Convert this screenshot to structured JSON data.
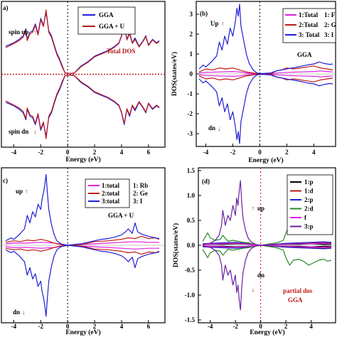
{
  "chart_data": [
    {
      "type": "line",
      "panel_label": "a)",
      "xlabel": "Energy (eV)",
      "ylabel": "",
      "xlim": [
        -4.6,
        6.8
      ],
      "ylim": [
        -1.0,
        1.0
      ],
      "xticks": [
        -4,
        -2,
        0,
        2,
        4,
        6
      ],
      "yticks": [],
      "zero_line": "dotted-red-horizontal",
      "fermi_line": "dotted-black-vertical",
      "legend": "top-center",
      "annotations": [
        {
          "text": "spin up",
          "color": "#000000"
        },
        {
          "text": "spin dn",
          "color": "#000000"
        },
        {
          "text": "Total DOS",
          "color": "#b01717"
        }
      ],
      "series": [
        {
          "name": "GGA",
          "color": "#1f1fd6",
          "x": [
            -4.6,
            -4,
            -3.6,
            -3.3,
            -3.1,
            -3.0,
            -2.8,
            -2.6,
            -2.4,
            -2.2,
            -2.0,
            -1.8,
            -1.6,
            -1.4,
            -1.2,
            -1.0,
            -0.8,
            -0.6,
            -0.4,
            -0.2,
            0.2,
            0.5,
            0.8,
            1.0,
            1.5,
            2.0,
            2.5,
            3.0,
            3.5,
            3.8,
            4.0,
            4.2,
            4.4,
            4.6,
            4.8,
            5.0,
            5.3,
            5.6,
            5.8,
            6.0,
            6.3,
            6.6,
            6.8
          ],
          "y": [
            0.4,
            0.45,
            0.5,
            0.55,
            0.65,
            0.5,
            0.6,
            0.62,
            0.72,
            0.58,
            0.8,
            0.7,
            0.88,
            0.62,
            0.55,
            0.42,
            0.3,
            0.22,
            0.12,
            0.02,
            0.01,
            0.02,
            0.08,
            0.12,
            0.18,
            0.26,
            0.3,
            0.34,
            0.4,
            0.45,
            0.55,
            0.72,
            0.5,
            0.6,
            0.45,
            0.52,
            0.4,
            0.48,
            0.55,
            0.42,
            0.5,
            0.45,
            0.48
          ]
        },
        {
          "name": "GGA + U",
          "color": "#c01818",
          "x": [
            -4.6,
            -4,
            -3.6,
            -3.3,
            -3.1,
            -3.0,
            -2.8,
            -2.6,
            -2.4,
            -2.2,
            -2.0,
            -1.8,
            -1.6,
            -1.4,
            -1.2,
            -1.0,
            -0.8,
            -0.6,
            -0.4,
            -0.2,
            0.2,
            0.5,
            0.8,
            1.0,
            1.5,
            2.0,
            2.5,
            3.0,
            3.5,
            3.8,
            4.0,
            4.2,
            4.4,
            4.6,
            4.8,
            5.0,
            5.3,
            5.6,
            5.8,
            6.0,
            6.3,
            6.6,
            6.8
          ],
          "y": [
            0.38,
            0.44,
            0.48,
            0.53,
            0.63,
            0.48,
            0.58,
            0.6,
            0.7,
            0.56,
            0.78,
            0.68,
            0.92,
            0.6,
            0.53,
            0.4,
            0.28,
            0.2,
            0.1,
            0.02,
            0.01,
            0.02,
            0.07,
            0.11,
            0.17,
            0.25,
            0.29,
            0.33,
            0.39,
            0.44,
            0.54,
            0.7,
            0.49,
            0.58,
            0.44,
            0.5,
            0.39,
            0.47,
            0.54,
            0.41,
            0.49,
            0.44,
            0.47
          ]
        }
      ]
    },
    {
      "type": "line",
      "panel_label": "(b)",
      "xlabel": "Energy (eV)",
      "ylabel": "DOS(states/eV)",
      "xlim": [
        -4.5,
        5.4
      ],
      "ylim": [
        -3.5,
        3.5
      ],
      "xticks": [
        -4,
        -2,
        0,
        2,
        4
      ],
      "yticks": [
        -3,
        -2,
        -1,
        0,
        1,
        2,
        3
      ],
      "legend": "top-right",
      "annotations": [
        {
          "text": "Up",
          "color": "#000000"
        },
        {
          "text": "dn",
          "color": "#000000"
        },
        {
          "text": "GGA",
          "color": "#000000"
        }
      ],
      "legend_entries": [
        "1:Total",
        "2:Total",
        "3: Total"
      ],
      "side_labels": [
        "1: F",
        "2: G",
        "3: I"
      ],
      "series": [
        {
          "name": "1:Total",
          "color": "#e020e0",
          "x": [
            -4.5,
            -4,
            -3,
            -2,
            -1.5,
            -1,
            0,
            1,
            1.5,
            2,
            3,
            4,
            4.5,
            5,
            5.4
          ],
          "y": [
            0.05,
            0.08,
            0.1,
            0.12,
            0.1,
            0.05,
            0.0,
            0.03,
            0.06,
            0.08,
            0.1,
            0.12,
            0.15,
            0.12,
            0.1
          ]
        },
        {
          "name": "2:Total",
          "color": "#c01818",
          "x": [
            -4.5,
            -4,
            -3.5,
            -3,
            -2.5,
            -2,
            -1.5,
            -1,
            -0.5,
            0,
            0.8,
            1.2,
            1.6,
            2,
            2.5,
            3,
            3.5,
            4,
            4.5,
            5,
            5.4
          ],
          "y": [
            0.1,
            0.25,
            0.2,
            0.3,
            0.25,
            0.3,
            0.2,
            0.1,
            0.05,
            0.0,
            0.0,
            0.15,
            0.2,
            0.3,
            0.25,
            0.3,
            0.35,
            0.4,
            0.3,
            0.25,
            0.2
          ]
        },
        {
          "name": "3: Total",
          "color": "#1f1fd6",
          "x": [
            -4.5,
            -4.2,
            -4.0,
            -3.6,
            -3.2,
            -3.0,
            -2.8,
            -2.6,
            -2.4,
            -2.2,
            -2.0,
            -1.8,
            -1.7,
            -1.6,
            -1.5,
            -1.4,
            -1.2,
            -1.0,
            -0.8,
            -0.5,
            -0.2,
            0.2,
            0.8,
            1.0,
            1.4,
            1.8,
            2.2,
            2.6,
            3.0,
            3.5,
            4.0,
            4.4,
            4.8,
            5.2,
            5.4
          ],
          "y": [
            0.25,
            0.45,
            0.35,
            0.6,
            0.9,
            1.6,
            1.2,
            1.9,
            1.5,
            2.3,
            1.9,
            2.7,
            3.3,
            2.9,
            3.5,
            2.4,
            1.7,
            1.0,
            0.55,
            0.2,
            0.04,
            0.02,
            0.05,
            0.1,
            0.18,
            0.22,
            0.28,
            0.32,
            0.38,
            0.45,
            0.5,
            0.6,
            0.52,
            0.48,
            0.5
          ]
        }
      ]
    },
    {
      "type": "line",
      "panel_label": "c)",
      "xlabel": "Energy (eV)",
      "ylabel": "",
      "xlim": [
        -4.6,
        6.8
      ],
      "ylim": [
        -1.0,
        1.0
      ],
      "xticks": [
        -4,
        -2,
        0,
        2,
        4,
        6
      ],
      "yticks": [],
      "legend": "top-right",
      "annotations": [
        {
          "text": "up",
          "color": "#000000"
        },
        {
          "text": "dn",
          "color": "#000000"
        },
        {
          "text": "GGA + U",
          "color": "#000000"
        }
      ],
      "legend_entries": [
        "1:total",
        "2:total",
        "3:total"
      ],
      "side_labels": [
        "1: Rb",
        "2: Ge",
        "3: I"
      ],
      "series": [
        {
          "name": "1:total",
          "color": "#e020e0",
          "x": [
            -4.6,
            -4,
            -3,
            -2,
            -1,
            0,
            1,
            2,
            3,
            4,
            5,
            6,
            6.8
          ],
          "y": [
            0.02,
            0.03,
            0.03,
            0.04,
            0.03,
            0.0,
            0.01,
            0.02,
            0.03,
            0.04,
            0.05,
            0.04,
            0.04
          ]
        },
        {
          "name": "2:total",
          "color": "#c01818",
          "x": [
            -4.6,
            -4,
            -3.5,
            -3,
            -2.5,
            -2,
            -1.5,
            -1,
            -0.5,
            0,
            1,
            1.5,
            2,
            3,
            4,
            4.5,
            5,
            5.5,
            6,
            6.5,
            6.8
          ],
          "y": [
            0.04,
            0.06,
            0.05,
            0.07,
            0.06,
            0.08,
            0.06,
            0.03,
            0.01,
            0.0,
            0.01,
            0.03,
            0.05,
            0.06,
            0.08,
            0.1,
            0.09,
            0.12,
            0.09,
            0.1,
            0.08
          ]
        },
        {
          "name": "3:total",
          "color": "#1f1fd6",
          "x": [
            -4.6,
            -4.2,
            -4.0,
            -3.6,
            -3.2,
            -3.0,
            -2.8,
            -2.6,
            -2.4,
            -2.2,
            -2.0,
            -1.9,
            -1.8,
            -1.7,
            -1.6,
            -1.5,
            -1.4,
            -1.2,
            -1.0,
            -0.8,
            -0.5,
            0,
            0.5,
            1,
            1.5,
            2,
            2.5,
            3,
            3.5,
            4,
            4.3,
            4.5,
            4.8,
            5.0,
            5.2,
            5.5,
            6,
            6.5,
            6.8
          ],
          "y": [
            0.06,
            0.1,
            0.08,
            0.14,
            0.22,
            0.4,
            0.3,
            0.45,
            0.38,
            0.55,
            0.48,
            0.62,
            0.7,
            0.8,
            0.95,
            0.7,
            0.48,
            0.28,
            0.14,
            0.06,
            0.02,
            0.0,
            0.01,
            0.02,
            0.04,
            0.06,
            0.08,
            0.09,
            0.11,
            0.14,
            0.18,
            0.22,
            0.16,
            0.3,
            0.18,
            0.15,
            0.12,
            0.1,
            0.09
          ]
        }
      ]
    },
    {
      "type": "line",
      "panel_label": "(d)",
      "xlabel": "Energy (eV)",
      "ylabel": "DOS(states/eV)",
      "xlim": [
        -4.6,
        5.6
      ],
      "ylim": [
        -1.5,
        1.5
      ],
      "xticks": [
        -4,
        -2,
        0,
        2,
        4
      ],
      "yticks": [
        -1.5,
        -1.0,
        -0.5,
        0.0,
        0.5,
        1.0,
        1.5
      ],
      "legend": "top-right",
      "annotations": [
        {
          "text": "up",
          "color": "#000000"
        },
        {
          "text": "dn",
          "color": "#000000"
        },
        {
          "text": "partial dos",
          "color": "#c01818"
        },
        {
          "text": "GGA",
          "color": "#c01818"
        }
      ],
      "series": [
        {
          "name": "1:p",
          "color": "#000000",
          "x": [
            -4.6,
            -4,
            -3,
            -2,
            -1,
            0,
            1,
            2,
            3,
            4,
            5,
            5.6
          ],
          "y": [
            0.01,
            0.02,
            0.02,
            0.03,
            0.02,
            0.0,
            0.01,
            0.02,
            0.02,
            0.03,
            0.02,
            0.02
          ]
        },
        {
          "name": "1:d",
          "color": "#c01818",
          "x": [
            -4.6,
            -4,
            -3,
            -2,
            -1,
            0,
            1,
            2,
            3,
            4,
            5,
            5.6
          ],
          "y": [
            0.02,
            0.03,
            0.04,
            0.04,
            0.03,
            0.0,
            0.02,
            0.03,
            0.04,
            0.05,
            0.05,
            0.04
          ]
        },
        {
          "name": "2:p",
          "color": "#1f1fd6",
          "x": [
            -4.6,
            -4,
            -3,
            -2,
            -1,
            0,
            1,
            2,
            3,
            4,
            5,
            5.6
          ],
          "y": [
            0.03,
            0.04,
            0.05,
            0.06,
            0.04,
            0.0,
            0.02,
            0.04,
            0.05,
            0.06,
            0.07,
            0.06
          ]
        },
        {
          "name": "2:d",
          "color": "#2a8a2a",
          "x": [
            -4.6,
            -4.2,
            -4.0,
            -3.6,
            -3.2,
            -3.0,
            -2.6,
            -2.2,
            -1.8,
            -1.4,
            -1.0,
            -0.5,
            0,
            0.5,
            1.0,
            1.4,
            1.8,
            2.0,
            2.3,
            2.6,
            3.0,
            3.4,
            3.8,
            4.2,
            4.6,
            5.0,
            5.3,
            5.6
          ],
          "y": [
            0.08,
            0.25,
            0.15,
            0.1,
            0.12,
            0.2,
            0.08,
            0.1,
            0.08,
            0.06,
            0.05,
            0.02,
            0.0,
            0.02,
            0.04,
            0.06,
            0.1,
            0.25,
            0.4,
            0.3,
            0.28,
            0.32,
            0.4,
            0.35,
            0.3,
            0.28,
            0.32,
            0.3
          ]
        },
        {
          "name": "f",
          "color": "#e020e0",
          "x": [
            -4.6,
            -4,
            -3,
            -2,
            -1,
            0,
            1,
            2,
            3,
            4,
            5,
            5.6
          ],
          "y": [
            0.01,
            0.02,
            0.03,
            0.04,
            0.02,
            0.0,
            0.01,
            0.02,
            0.03,
            0.03,
            0.04,
            0.03
          ]
        },
        {
          "name": "3:p",
          "color": "#6a1fa0",
          "x": [
            -4.6,
            -4.0,
            -3.6,
            -3.3,
            -3.1,
            -3.0,
            -2.8,
            -2.6,
            -2.4,
            -2.2,
            -2.0,
            -1.9,
            -1.8,
            -1.7,
            -1.6,
            -1.5,
            -1.4,
            -1.2,
            -1.0,
            -0.8,
            -0.6,
            -0.3,
            0,
            0.5,
            1,
            2,
            3,
            4,
            5,
            5.6
          ],
          "y": [
            0.02,
            0.04,
            0.1,
            0.2,
            0.4,
            0.7,
            0.4,
            0.6,
            0.5,
            0.8,
            0.6,
            0.95,
            0.8,
            1.1,
            1.3,
            0.85,
            0.55,
            0.3,
            0.15,
            0.08,
            0.04,
            0.01,
            0.0,
            0.01,
            0.02,
            0.03,
            0.04,
            0.05,
            0.06,
            0.05
          ]
        }
      ]
    }
  ]
}
